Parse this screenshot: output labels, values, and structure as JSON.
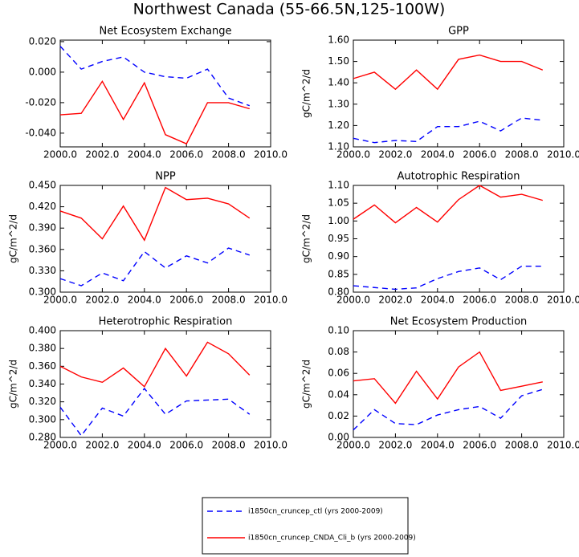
{
  "title": "Northwest Canada (55-66.5N,125-100W)",
  "chart_data": [
    {
      "type": "line",
      "title": "Net Ecosystem Exchange",
      "x": [
        2000,
        2001,
        2002,
        2003,
        2004,
        2005,
        2006,
        2007,
        2008,
        2009
      ],
      "xlim": [
        2000,
        2010
      ],
      "xticks": [
        {
          "value": 2000,
          "label": "2000.0"
        },
        {
          "value": 2002,
          "label": "2002.0"
        },
        {
          "value": 2004,
          "label": "2004.0"
        },
        {
          "value": 2006,
          "label": "2006.0"
        },
        {
          "value": 2008,
          "label": "2008.0"
        },
        {
          "value": 2010,
          "label": "2010.0"
        }
      ],
      "ylim": [
        -0.049,
        0.021
      ],
      "yticks": [
        {
          "value": -0.04,
          "label": "-0.040"
        },
        {
          "value": -0.02,
          "label": "-0.020"
        },
        {
          "value": 0,
          "label": "0.000"
        },
        {
          "value": 0.02,
          "label": "0.020"
        }
      ],
      "series": [
        {
          "name": "i1850cn_cruncep_ctl (yrs 2000-2009)",
          "color": "#0000ff",
          "dashed": true,
          "values": [
            0.017,
            0.002,
            0.007,
            0.01,
            0.0,
            -0.003,
            -0.004,
            0.002,
            -0.017,
            -0.022
          ]
        },
        {
          "name": "i1850cn_cruncep_CNDA_Cli_b (yrs 2000-2009)",
          "color": "#ff0000",
          "dashed": false,
          "values": [
            -0.028,
            -0.027,
            -0.006,
            -0.031,
            -0.007,
            -0.041,
            -0.047,
            -0.02,
            -0.02,
            -0.024
          ]
        }
      ]
    },
    {
      "type": "line",
      "title": "GPP",
      "ylabel": "gC/m^2/d",
      "x": [
        2000,
        2001,
        2002,
        2003,
        2004,
        2005,
        2006,
        2007,
        2008,
        2009
      ],
      "xlim": [
        2000,
        2010
      ],
      "xticks": [
        {
          "value": 2000,
          "label": "2000.0"
        },
        {
          "value": 2002,
          "label": "2002.0"
        },
        {
          "value": 2004,
          "label": "2004.0"
        },
        {
          "value": 2006,
          "label": "2006.0"
        },
        {
          "value": 2008,
          "label": "2008.0"
        },
        {
          "value": 2010,
          "label": "2010.0"
        }
      ],
      "ylim": [
        1.1,
        1.6
      ],
      "yticks": [
        {
          "value": 1.1,
          "label": "1.10"
        },
        {
          "value": 1.2,
          "label": "1.20"
        },
        {
          "value": 1.3,
          "label": "1.30"
        },
        {
          "value": 1.4,
          "label": "1.40"
        },
        {
          "value": 1.5,
          "label": "1.50"
        },
        {
          "value": 1.6,
          "label": "1.60"
        }
      ],
      "series": [
        {
          "name": "i1850cn_cruncep_ctl (yrs 2000-2009)",
          "color": "#0000ff",
          "dashed": true,
          "values": [
            1.14,
            1.12,
            1.13,
            1.125,
            1.195,
            1.195,
            1.22,
            1.175,
            1.235,
            1.225
          ]
        },
        {
          "name": "i1850cn_cruncep_CNDA_Cli_b (yrs 2000-2009)",
          "color": "#ff0000",
          "dashed": false,
          "values": [
            1.42,
            1.45,
            1.37,
            1.46,
            1.37,
            1.51,
            1.53,
            1.5,
            1.5,
            1.46
          ]
        }
      ]
    },
    {
      "type": "line",
      "title": "NPP",
      "ylabel": "gC/m^2/d",
      "x": [
        2000,
        2001,
        2002,
        2003,
        2004,
        2005,
        2006,
        2007,
        2008,
        2009
      ],
      "xlim": [
        2000,
        2010
      ],
      "xticks": [
        {
          "value": 2000,
          "label": "2000.0"
        },
        {
          "value": 2002,
          "label": "2002.0"
        },
        {
          "value": 2004,
          "label": "2004.0"
        },
        {
          "value": 2006,
          "label": "2006.0"
        },
        {
          "value": 2008,
          "label": "2008.0"
        },
        {
          "value": 2010,
          "label": "2010.0"
        }
      ],
      "ylim": [
        0.3,
        0.45
      ],
      "yticks": [
        {
          "value": 0.3,
          "label": "0.300"
        },
        {
          "value": 0.33,
          "label": "0.330"
        },
        {
          "value": 0.36,
          "label": "0.360"
        },
        {
          "value": 0.39,
          "label": "0.390"
        },
        {
          "value": 0.42,
          "label": "0.420"
        },
        {
          "value": 0.45,
          "label": "0.450"
        }
      ],
      "series": [
        {
          "name": "i1850cn_cruncep_ctl (yrs 2000-2009)",
          "color": "#0000ff",
          "dashed": true,
          "values": [
            0.319,
            0.309,
            0.327,
            0.316,
            0.357,
            0.334,
            0.351,
            0.341,
            0.362,
            0.352
          ]
        },
        {
          "name": "i1850cn_cruncep_CNDA_Cli_b (yrs 2000-2009)",
          "color": "#ff0000",
          "dashed": false,
          "values": [
            0.414,
            0.404,
            0.375,
            0.421,
            0.373,
            0.447,
            0.43,
            0.432,
            0.424,
            0.404
          ]
        }
      ]
    },
    {
      "type": "line",
      "title": "Autotrophic Respiration",
      "ylabel": "gC/m^2/d",
      "x": [
        2000,
        2001,
        2002,
        2003,
        2004,
        2005,
        2006,
        2007,
        2008,
        2009
      ],
      "xlim": [
        2000,
        2010
      ],
      "xticks": [
        {
          "value": 2000,
          "label": "2000.0"
        },
        {
          "value": 2002,
          "label": "2002.0"
        },
        {
          "value": 2004,
          "label": "2004.0"
        },
        {
          "value": 2006,
          "label": "2006.0"
        },
        {
          "value": 2008,
          "label": "2008.0"
        },
        {
          "value": 2010,
          "label": "2010.0"
        }
      ],
      "ylim": [
        0.8,
        1.1
      ],
      "yticks": [
        {
          "value": 0.8,
          "label": "0.80"
        },
        {
          "value": 0.85,
          "label": "0.85"
        },
        {
          "value": 0.9,
          "label": "0.90"
        },
        {
          "value": 0.95,
          "label": "0.95"
        },
        {
          "value": 1,
          "label": "1.00"
        },
        {
          "value": 1.05,
          "label": "1.05"
        },
        {
          "value": 1.1,
          "label": "1.10"
        }
      ],
      "series": [
        {
          "name": "i1850cn_cruncep_ctl (yrs 2000-2009)",
          "color": "#0000ff",
          "dashed": true,
          "values": [
            0.818,
            0.813,
            0.808,
            0.812,
            0.838,
            0.858,
            0.868,
            0.835,
            0.873,
            0.873
          ]
        },
        {
          "name": "i1850cn_cruncep_CNDA_Cli_b (yrs 2000-2009)",
          "color": "#ff0000",
          "dashed": false,
          "values": [
            1.005,
            1.045,
            0.995,
            1.038,
            0.997,
            1.06,
            1.1,
            1.067,
            1.075,
            1.058
          ]
        }
      ]
    },
    {
      "type": "line",
      "title": "Heterotrophic Respiration",
      "ylabel": "gC/m^2/d",
      "x": [
        2000,
        2001,
        2002,
        2003,
        2004,
        2005,
        2006,
        2007,
        2008,
        2009
      ],
      "xlim": [
        2000,
        2010
      ],
      "xticks": [
        {
          "value": 2000,
          "label": "2000.0"
        },
        {
          "value": 2002,
          "label": "2002.0"
        },
        {
          "value": 2004,
          "label": "2004.0"
        },
        {
          "value": 2006,
          "label": "2006.0"
        },
        {
          "value": 2008,
          "label": "2008.0"
        },
        {
          "value": 2010,
          "label": "2010.0"
        }
      ],
      "ylim": [
        0.28,
        0.4
      ],
      "yticks": [
        {
          "value": 0.28,
          "label": "0.280"
        },
        {
          "value": 0.3,
          "label": "0.300"
        },
        {
          "value": 0.32,
          "label": "0.320"
        },
        {
          "value": 0.34,
          "label": "0.340"
        },
        {
          "value": 0.36,
          "label": "0.360"
        },
        {
          "value": 0.38,
          "label": "0.380"
        },
        {
          "value": 0.4,
          "label": "0.400"
        }
      ],
      "series": [
        {
          "name": "i1850cn_cruncep_ctl (yrs 2000-2009)",
          "color": "#0000ff",
          "dashed": true,
          "values": [
            0.314,
            0.282,
            0.313,
            0.304,
            0.335,
            0.306,
            0.321,
            0.322,
            0.323,
            0.306
          ]
        },
        {
          "name": "i1850cn_cruncep_CNDA_Cli_b (yrs 2000-2009)",
          "color": "#ff0000",
          "dashed": false,
          "values": [
            0.36,
            0.348,
            0.342,
            0.358,
            0.337,
            0.38,
            0.349,
            0.387,
            0.374,
            0.35
          ]
        }
      ]
    },
    {
      "type": "line",
      "title": "Net Ecosystem Production",
      "ylabel": "gC/m^2/d",
      "x": [
        2000,
        2001,
        2002,
        2003,
        2004,
        2005,
        2006,
        2007,
        2008,
        2009
      ],
      "xlim": [
        2000,
        2010
      ],
      "xticks": [
        {
          "value": 2000,
          "label": "2000.0"
        },
        {
          "value": 2002,
          "label": "2002.0"
        },
        {
          "value": 2004,
          "label": "2004.0"
        },
        {
          "value": 2006,
          "label": "2006.0"
        },
        {
          "value": 2008,
          "label": "2008.0"
        },
        {
          "value": 2010,
          "label": "2010.0"
        }
      ],
      "ylim": [
        0,
        0.1
      ],
      "yticks": [
        {
          "value": 0,
          "label": "0.00"
        },
        {
          "value": 0.02,
          "label": "0.02"
        },
        {
          "value": 0.04,
          "label": "0.04"
        },
        {
          "value": 0.06,
          "label": "0.06"
        },
        {
          "value": 0.08,
          "label": "0.08"
        },
        {
          "value": 0.1,
          "label": "0.10"
        }
      ],
      "series": [
        {
          "name": "i1850cn_cruncep_ctl (yrs 2000-2009)",
          "color": "#0000ff",
          "dashed": true,
          "values": [
            0.007,
            0.026,
            0.013,
            0.012,
            0.021,
            0.026,
            0.029,
            0.018,
            0.039,
            0.045
          ]
        },
        {
          "name": "i1850cn_cruncep_CNDA_Cli_b (yrs 2000-2009)",
          "color": "#ff0000",
          "dashed": false,
          "values": [
            0.053,
            0.055,
            0.032,
            0.062,
            0.036,
            0.066,
            0.08,
            0.044,
            0.048,
            0.052
          ]
        }
      ]
    }
  ]
}
